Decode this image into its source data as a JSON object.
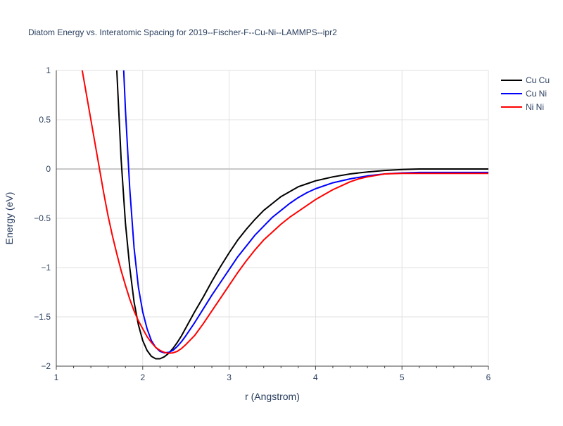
{
  "chart_data": {
    "type": "line",
    "title": "Diatom Energy vs. Interatomic Spacing for 2019--Fischer-F--Cu-Ni--LAMMPS--ipr2",
    "xlabel": "r (Angstrom)",
    "ylabel": "Energy (eV)",
    "xlim": [
      1,
      6
    ],
    "ylim": [
      -2,
      1
    ],
    "x_ticks": [
      1,
      2,
      3,
      4,
      5,
      6
    ],
    "x_tick_labels": [
      "1",
      "2",
      "3",
      "4",
      "5",
      "6"
    ],
    "y_ticks": [
      -2,
      -1.5,
      -1,
      -0.5,
      0,
      0.5,
      1
    ],
    "y_tick_labels": [
      "−2",
      "−1.5",
      "−1",
      "−0.5",
      "0",
      "0.5",
      "1"
    ],
    "grid": true,
    "legend_position": "top-right",
    "series": [
      {
        "name": "Cu Cu",
        "color": "#000000",
        "points": [
          [
            1.7,
            1.0
          ],
          [
            1.75,
            0.1
          ],
          [
            1.8,
            -0.55
          ],
          [
            1.85,
            -1.0
          ],
          [
            1.9,
            -1.35
          ],
          [
            1.95,
            -1.58
          ],
          [
            2.0,
            -1.74
          ],
          [
            2.05,
            -1.84
          ],
          [
            2.1,
            -1.9
          ],
          [
            2.15,
            -1.925
          ],
          [
            2.2,
            -1.925
          ],
          [
            2.25,
            -1.905
          ],
          [
            2.3,
            -1.87
          ],
          [
            2.35,
            -1.82
          ],
          [
            2.4,
            -1.76
          ],
          [
            2.45,
            -1.69
          ],
          [
            2.5,
            -1.61
          ],
          [
            2.6,
            -1.45
          ],
          [
            2.7,
            -1.3
          ],
          [
            2.8,
            -1.14
          ],
          [
            2.9,
            -0.99
          ],
          [
            3.0,
            -0.85
          ],
          [
            3.1,
            -0.72
          ],
          [
            3.2,
            -0.61
          ],
          [
            3.3,
            -0.51
          ],
          [
            3.4,
            -0.42
          ],
          [
            3.5,
            -0.35
          ],
          [
            3.6,
            -0.28
          ],
          [
            3.7,
            -0.23
          ],
          [
            3.8,
            -0.18
          ],
          [
            3.9,
            -0.15
          ],
          [
            4.0,
            -0.12
          ],
          [
            4.2,
            -0.08
          ],
          [
            4.4,
            -0.05
          ],
          [
            4.6,
            -0.03
          ],
          [
            4.8,
            -0.015
          ],
          [
            5.0,
            -0.005
          ],
          [
            5.2,
            0.0
          ],
          [
            5.5,
            0.0
          ],
          [
            6.0,
            0.0
          ]
        ]
      },
      {
        "name": "Cu Ni",
        "color": "#0000ff",
        "points": [
          [
            1.78,
            1.0
          ],
          [
            1.8,
            0.6
          ],
          [
            1.85,
            -0.2
          ],
          [
            1.9,
            -0.8
          ],
          [
            1.95,
            -1.2
          ],
          [
            2.0,
            -1.45
          ],
          [
            2.05,
            -1.62
          ],
          [
            2.1,
            -1.74
          ],
          [
            2.15,
            -1.81
          ],
          [
            2.2,
            -1.85
          ],
          [
            2.25,
            -1.865
          ],
          [
            2.3,
            -1.86
          ],
          [
            2.35,
            -1.84
          ],
          [
            2.4,
            -1.8
          ],
          [
            2.45,
            -1.75
          ],
          [
            2.5,
            -1.69
          ],
          [
            2.6,
            -1.56
          ],
          [
            2.7,
            -1.42
          ],
          [
            2.8,
            -1.28
          ],
          [
            2.9,
            -1.15
          ],
          [
            3.0,
            -1.02
          ],
          [
            3.1,
            -0.89
          ],
          [
            3.2,
            -0.78
          ],
          [
            3.3,
            -0.67
          ],
          [
            3.4,
            -0.58
          ],
          [
            3.5,
            -0.49
          ],
          [
            3.6,
            -0.42
          ],
          [
            3.7,
            -0.35
          ],
          [
            3.8,
            -0.29
          ],
          [
            3.9,
            -0.24
          ],
          [
            4.0,
            -0.2
          ],
          [
            4.2,
            -0.14
          ],
          [
            4.4,
            -0.1
          ],
          [
            4.6,
            -0.07
          ],
          [
            4.8,
            -0.05
          ],
          [
            5.0,
            -0.04
          ],
          [
            5.2,
            -0.035
          ],
          [
            5.5,
            -0.035
          ],
          [
            6.0,
            -0.035
          ]
        ]
      },
      {
        "name": "Ni Ni",
        "color": "#ff0000",
        "points": [
          [
            1.3,
            1.0
          ],
          [
            1.35,
            0.75
          ],
          [
            1.4,
            0.5
          ],
          [
            1.45,
            0.25
          ],
          [
            1.5,
            0.0
          ],
          [
            1.55,
            -0.25
          ],
          [
            1.6,
            -0.48
          ],
          [
            1.65,
            -0.68
          ],
          [
            1.7,
            -0.86
          ],
          [
            1.75,
            -1.03
          ],
          [
            1.8,
            -1.18
          ],
          [
            1.85,
            -1.32
          ],
          [
            1.9,
            -1.44
          ],
          [
            1.95,
            -1.54
          ],
          [
            2.0,
            -1.62
          ],
          [
            2.05,
            -1.7
          ],
          [
            2.1,
            -1.76
          ],
          [
            2.15,
            -1.81
          ],
          [
            2.2,
            -1.84
          ],
          [
            2.25,
            -1.86
          ],
          [
            2.3,
            -1.87
          ],
          [
            2.35,
            -1.865
          ],
          [
            2.4,
            -1.85
          ],
          [
            2.45,
            -1.82
          ],
          [
            2.5,
            -1.78
          ],
          [
            2.6,
            -1.69
          ],
          [
            2.7,
            -1.57
          ],
          [
            2.8,
            -1.44
          ],
          [
            2.9,
            -1.31
          ],
          [
            3.0,
            -1.18
          ],
          [
            3.1,
            -1.05
          ],
          [
            3.2,
            -0.93
          ],
          [
            3.3,
            -0.82
          ],
          [
            3.4,
            -0.72
          ],
          [
            3.5,
            -0.64
          ],
          [
            3.6,
            -0.56
          ],
          [
            3.7,
            -0.49
          ],
          [
            3.8,
            -0.43
          ],
          [
            3.9,
            -0.37
          ],
          [
            4.0,
            -0.31
          ],
          [
            4.1,
            -0.26
          ],
          [
            4.2,
            -0.21
          ],
          [
            4.3,
            -0.17
          ],
          [
            4.4,
            -0.13
          ],
          [
            4.5,
            -0.1
          ],
          [
            4.6,
            -0.08
          ],
          [
            4.8,
            -0.05
          ],
          [
            5.0,
            -0.045
          ],
          [
            5.5,
            -0.045
          ],
          [
            6.0,
            -0.045
          ]
        ]
      }
    ]
  }
}
